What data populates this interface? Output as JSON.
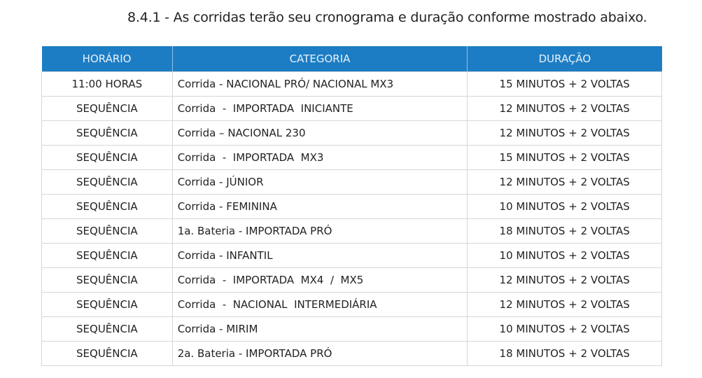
{
  "title": "8.4.1 - As corridas terão seu cronograma e duração conforme mostrado abaixo.",
  "header_color": "#1d7dc4",
  "table": {
    "headers": [
      "HORÁRIO",
      "CATEGORIA",
      "DURAÇÃO"
    ],
    "rows": [
      [
        "11:00 HORAS",
        "Corrida - NACIONAL PRÓ/ NACIONAL MX3",
        "15 MINUTOS + 2 VOLTAS"
      ],
      [
        "SEQUÊNCIA",
        "Corrida  -  IMPORTADA  INICIANTE",
        "12 MINUTOS + 2 VOLTAS"
      ],
      [
        "SEQUÊNCIA",
        "Corrida – NACIONAL 230",
        "12 MINUTOS + 2 VOLTAS"
      ],
      [
        "SEQUÊNCIA",
        "Corrida  -  IMPORTADA  MX3",
        "15 MINUTOS + 2 VOLTAS"
      ],
      [
        "SEQUÊNCIA",
        "Corrida - JÚNIOR",
        "12 MINUTOS + 2 VOLTAS"
      ],
      [
        "SEQUÊNCIA",
        "Corrida - FEMININA",
        "10 MINUTOS + 2 VOLTAS"
      ],
      [
        "SEQUÊNCIA",
        "1a. Bateria - IMPORTADA PRÓ",
        "18 MINUTOS + 2 VOLTAS"
      ],
      [
        "SEQUÊNCIA",
        "Corrida - INFANTIL",
        "10 MINUTOS + 2 VOLTAS"
      ],
      [
        "SEQUÊNCIA",
        "Corrida  -  IMPORTADA  MX4  /  MX5",
        "12 MINUTOS + 2 VOLTAS"
      ],
      [
        "SEQUÊNCIA",
        "Corrida  -  NACIONAL  INTERMEDIÁRIA",
        "12 MINUTOS + 2 VOLTAS"
      ],
      [
        "SEQUÊNCIA",
        "Corrida - MIRIM",
        "10 MINUTOS + 2 VOLTAS"
      ],
      [
        "SEQUÊNCIA",
        "2a. Bateria - IMPORTADA PRÓ",
        "18 MINUTOS + 2 VOLTAS"
      ]
    ]
  }
}
